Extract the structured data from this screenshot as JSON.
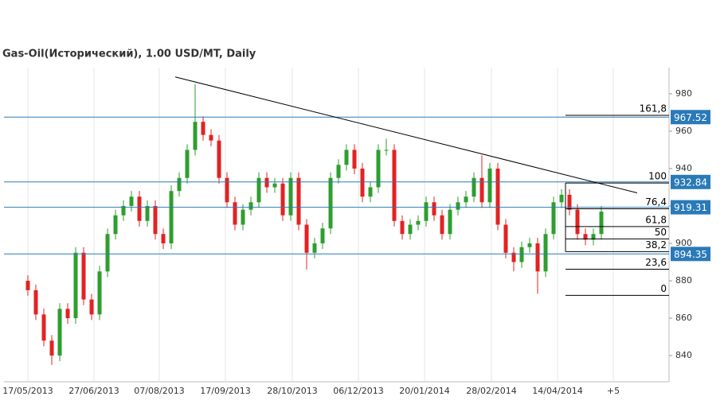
{
  "chart_data": {
    "type": "candlestick",
    "title": "Gas-Oil(Исторический), 1.00 USD/MT, Daily",
    "x": [
      0,
      1,
      2,
      3,
      4,
      5,
      6,
      7,
      8,
      9,
      10,
      11,
      12,
      13,
      14,
      15,
      16,
      17,
      18,
      19,
      20,
      21,
      22,
      23,
      24,
      25,
      26,
      27,
      28,
      29,
      30,
      31,
      32,
      33,
      34,
      35,
      36,
      37,
      38,
      39,
      40,
      41,
      42,
      43,
      44,
      45,
      46,
      47,
      48,
      49,
      50,
      51,
      52,
      53,
      54,
      55,
      56,
      57,
      58,
      59,
      60,
      61,
      62,
      63,
      64,
      65,
      66,
      67,
      68,
      69,
      70,
      71,
      72
    ],
    "open": [
      880,
      875,
      862,
      848,
      840,
      865,
      860,
      895,
      870,
      862,
      885,
      905,
      915,
      920,
      925,
      912,
      920,
      905,
      900,
      928,
      935,
      950,
      965,
      958,
      955,
      935,
      922,
      910,
      918,
      922,
      935,
      930,
      932,
      915,
      935,
      910,
      895,
      900,
      908,
      935,
      942,
      950,
      940,
      925,
      930,
      950,
      950,
      912,
      905,
      910,
      912,
      922,
      915,
      905,
      918,
      922,
      925,
      935,
      922,
      940,
      910,
      895,
      890,
      898,
      900,
      885,
      905,
      922,
      926,
      918,
      905,
      902,
      905
    ],
    "high": [
      883,
      878,
      865,
      851,
      868,
      868,
      898,
      898,
      873,
      888,
      908,
      918,
      923,
      928,
      928,
      923,
      923,
      908,
      931,
      938,
      953,
      985,
      968,
      961,
      958,
      938,
      925,
      921,
      925,
      938,
      938,
      935,
      935,
      938,
      938,
      913,
      903,
      911,
      938,
      945,
      953,
      953,
      943,
      933,
      953,
      956,
      953,
      915,
      913,
      915,
      925,
      925,
      918,
      921,
      925,
      928,
      938,
      947,
      943,
      943,
      913,
      898,
      901,
      903,
      903,
      908,
      925,
      929,
      929,
      921,
      908,
      908,
      920
    ],
    "low": [
      872,
      859,
      845,
      835,
      837,
      857,
      857,
      867,
      859,
      859,
      882,
      902,
      912,
      917,
      909,
      909,
      902,
      897,
      897,
      925,
      932,
      947,
      955,
      952,
      932,
      919,
      907,
      907,
      915,
      919,
      927,
      927,
      912,
      912,
      907,
      886,
      892,
      897,
      905,
      932,
      939,
      937,
      922,
      922,
      927,
      947,
      909,
      902,
      902,
      907,
      909,
      912,
      902,
      902,
      915,
      919,
      922,
      919,
      919,
      907,
      892,
      885,
      887,
      895,
      873,
      882,
      902,
      919,
      915,
      902,
      899,
      899,
      902
    ],
    "close": [
      875,
      862,
      848,
      840,
      865,
      860,
      895,
      870,
      862,
      885,
      905,
      915,
      920,
      925,
      912,
      920,
      905,
      900,
      928,
      935,
      950,
      965,
      958,
      955,
      935,
      922,
      910,
      918,
      922,
      935,
      930,
      932,
      915,
      935,
      910,
      895,
      900,
      908,
      935,
      942,
      950,
      940,
      925,
      930,
      950,
      950,
      912,
      905,
      910,
      912,
      922,
      915,
      905,
      918,
      922,
      925,
      935,
      922,
      940,
      910,
      895,
      890,
      898,
      900,
      885,
      905,
      922,
      926,
      918,
      905,
      902,
      905,
      917
    ],
    "up_color": "#2e9e2e",
    "down_color": "#e32222",
    "xlim": [
      -3,
      80.5
    ],
    "xticks": [
      {
        "value": 0,
        "label": "17/05/2013"
      },
      {
        "value": 8.3,
        "label": "27/06/2013"
      },
      {
        "value": 16.5,
        "label": "07/08/2013"
      },
      {
        "value": 24.8,
        "label": "17/09/2013"
      },
      {
        "value": 33.2,
        "label": "28/10/2013"
      },
      {
        "value": 41.5,
        "label": "06/12/2013"
      },
      {
        "value": 49.8,
        "label": "20/01/2014"
      },
      {
        "value": 58.2,
        "label": "28/02/2014"
      },
      {
        "value": 66.5,
        "label": "14/04/2014"
      },
      {
        "value": 73.5,
        "label": "+5"
      }
    ],
    "ylim": [
      826,
      994
    ],
    "yticks": [
      840,
      860,
      880,
      900,
      920,
      940,
      960,
      980
    ],
    "levels": [
      967.52,
      932.84,
      919.31,
      894.35
    ],
    "level_color": "#2a7ab8",
    "fib": [
      {
        "label": "161,8",
        "value": 968.5
      },
      {
        "label": "100",
        "value": 932.3
      },
      {
        "label": "76,4",
        "value": 918.5
      },
      {
        "label": "61,8",
        "value": 909
      },
      {
        "label": "50",
        "value": 902.4
      },
      {
        "label": "38,2",
        "value": 895.6
      },
      {
        "label": "23,6",
        "value": 886.2
      },
      {
        "label": "0",
        "value": 872.2
      }
    ],
    "fib_x": [
      67.5,
      80.5
    ],
    "trendline": {
      "x": [
        18.5,
        76.5
      ],
      "y": [
        989,
        927
      ]
    }
  }
}
